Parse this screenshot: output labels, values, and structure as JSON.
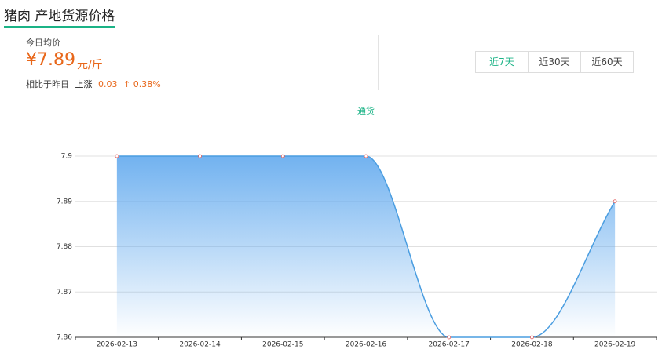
{
  "header": {
    "title": "猪肉 产地货源价格"
  },
  "summary": {
    "label": "今日均价",
    "price": "¥7.89",
    "unit": "元/斤",
    "compare": "相比于昨日",
    "trend": "上涨",
    "change": "0.03",
    "percent": "↑ 0.38%"
  },
  "tabs": [
    "近7天",
    "近30天",
    "近60天"
  ],
  "chart_data": {
    "type": "line",
    "categories": [
      "2026-02-13",
      "2026-02-14",
      "2026-02-15",
      "2026-02-16",
      "2026-02-17",
      "2026-02-18",
      "2026-02-19"
    ],
    "series": [
      {
        "name": "通货",
        "color": "#4a9de0",
        "values": [
          7.9,
          7.9,
          7.9,
          7.9,
          7.86,
          7.86,
          7.89
        ]
      }
    ],
    "ylim": [
      7.86,
      7.9
    ],
    "yticks": [
      7.86,
      7.87,
      7.88,
      7.89,
      7.9
    ],
    "grid": true,
    "area": true
  }
}
